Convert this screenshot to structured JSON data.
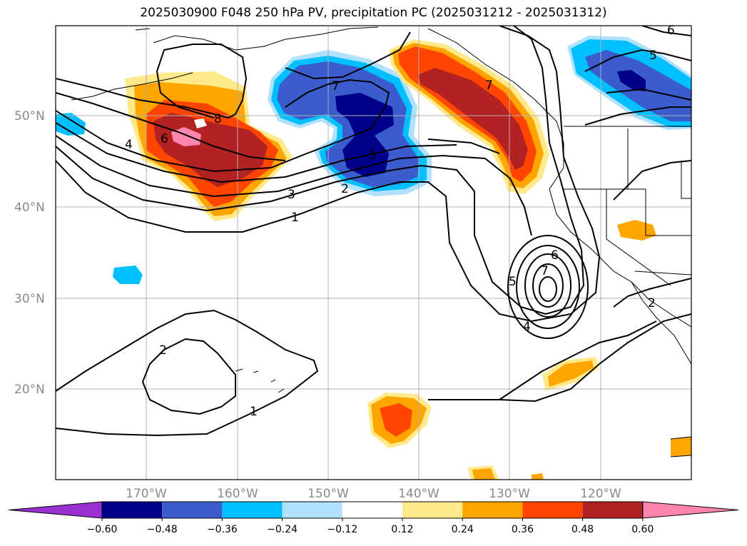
{
  "title": "2025030900 F048 250 hPa PV, precipitation PC (2025031212 - 2025031312)",
  "map": {
    "lon_range": [
      -180,
      -110
    ],
    "lat_range": [
      10,
      60
    ],
    "lat_ticks": [
      {
        "value": 50,
        "label": "50°N"
      },
      {
        "value": 40,
        "label": "40°N"
      },
      {
        "value": 30,
        "label": "30°N"
      },
      {
        "value": 20,
        "label": "20°N"
      }
    ],
    "lon_ticks": [
      {
        "value": -170,
        "label": "170°W"
      },
      {
        "value": -160,
        "label": "160°W"
      },
      {
        "value": -150,
        "label": "150°W"
      },
      {
        "value": -140,
        "label": "140°W"
      },
      {
        "value": -130,
        "label": "130°W"
      },
      {
        "value": -120,
        "label": "120°W"
      }
    ],
    "pv_contour_labels": [
      "1",
      "2",
      "3",
      "4",
      "5",
      "6",
      "7",
      "8"
    ]
  },
  "colorbar": {
    "levels": [
      "−0.60",
      "−0.48",
      "−0.36",
      "−0.24",
      "−0.12",
      "0.12",
      "0.24",
      "0.36",
      "0.48",
      "0.60"
    ],
    "colors": [
      "#9b30d0",
      "#00008b",
      "#3a5ccc",
      "#00bfff",
      "#b0e2ff",
      "#ffffff",
      "#ffe98a",
      "#ffa500",
      "#ff4500",
      "#b22222",
      "#ff85b0"
    ]
  },
  "colors": {
    "pos1": "#ffe98a",
    "pos2": "#ffa500",
    "pos3": "#ff4500",
    "pos4": "#b22222",
    "pos5": "#ff85b0",
    "neg1": "#b0e2ff",
    "neg2": "#00bfff",
    "neg3": "#3a5ccc",
    "neg4": "#00008b"
  }
}
